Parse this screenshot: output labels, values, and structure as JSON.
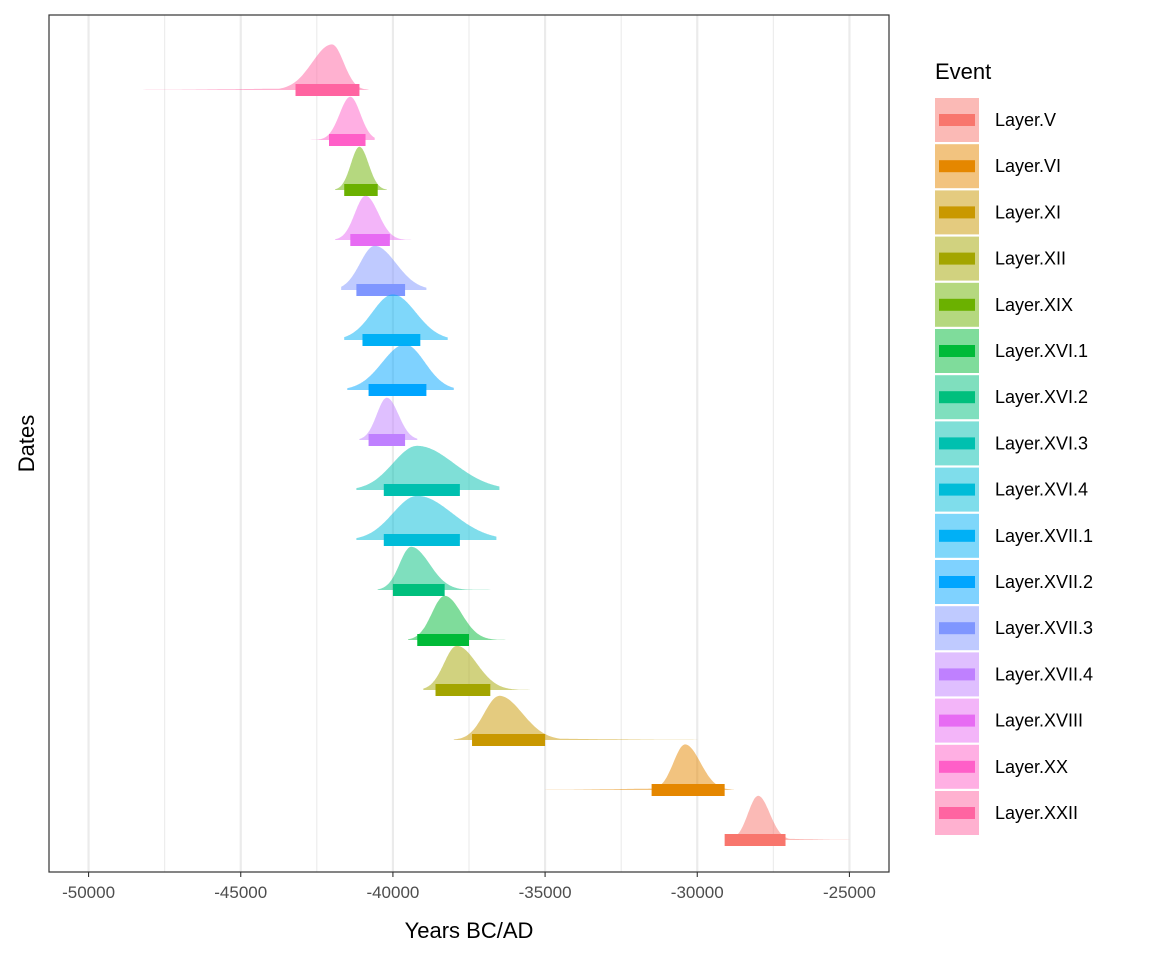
{
  "chart_data": {
    "type": "area",
    "xlabel": "Years BC/AD",
    "ylabel": "Dates",
    "xlim": [
      -51300,
      -23700
    ],
    "x_ticks": [
      -50000,
      -45000,
      -40000,
      -35000,
      -30000,
      -25000
    ],
    "x_tick_labels": [
      "-50000",
      "-45000",
      "-40000",
      "-35000",
      "-30000",
      "-25000"
    ],
    "grid": true,
    "legend_title": "Event",
    "legend_position": "right",
    "series": [
      {
        "name": "Layer.V",
        "color": "#F8766D",
        "peak": -28000,
        "sd_left": 330,
        "sd_right": 380,
        "height": 0.92,
        "tail_left": -28800,
        "tail_right": -25000,
        "interval": [
          -29100,
          -27100
        ]
      },
      {
        "name": "Layer.VI",
        "color": "#E58700",
        "peak": -30400,
        "sd_left": 380,
        "sd_right": 500,
        "height": 0.95,
        "tail_left": -35000,
        "tail_right": -28800,
        "interval": [
          -31500,
          -29100
        ]
      },
      {
        "name": "Layer.XI",
        "color": "#C99800",
        "peak": -36500,
        "sd_left": 500,
        "sd_right": 750,
        "height": 0.92,
        "tail_left": -38000,
        "tail_right": -30000,
        "interval": [
          -37400,
          -35000
        ]
      },
      {
        "name": "Layer.XII",
        "color": "#A3A500",
        "peak": -37900,
        "sd_left": 420,
        "sd_right": 650,
        "height": 0.92,
        "tail_left": -39000,
        "tail_right": -35500,
        "interval": [
          -38600,
          -36800
        ]
      },
      {
        "name": "Layer.XIX",
        "color": "#6BB100",
        "peak": -41100,
        "sd_left": 280,
        "sd_right": 300,
        "height": 0.9,
        "tail_left": -41900,
        "tail_right": -40200,
        "interval": [
          -41600,
          -40500
        ]
      },
      {
        "name": "Layer.XVI.1",
        "color": "#00BA38",
        "peak": -38300,
        "sd_left": 420,
        "sd_right": 550,
        "height": 0.92,
        "tail_left": -39500,
        "tail_right": -36300,
        "interval": [
          -39200,
          -37500
        ]
      },
      {
        "name": "Layer.XVI.2",
        "color": "#00BF7D",
        "peak": -39400,
        "sd_left": 380,
        "sd_right": 600,
        "height": 0.9,
        "tail_left": -40500,
        "tail_right": -36800,
        "interval": [
          -40000,
          -38300
        ]
      },
      {
        "name": "Layer.XVI.3",
        "color": "#00C0AF",
        "peak": -39200,
        "sd_left": 800,
        "sd_right": 1200,
        "height": 0.92,
        "tail_left": -41200,
        "tail_right": -36500,
        "interval": [
          -40300,
          -37800
        ]
      },
      {
        "name": "Layer.XVI.4",
        "color": "#00BCD8",
        "peak": -39200,
        "sd_left": 800,
        "sd_right": 1150,
        "height": 0.92,
        "tail_left": -41200,
        "tail_right": -36600,
        "interval": [
          -40300,
          -37800
        ]
      },
      {
        "name": "Layer.XVII.1",
        "color": "#00B0F6",
        "peak": -40000,
        "sd_left": 680,
        "sd_right": 750,
        "height": 0.95,
        "tail_left": -41600,
        "tail_right": -38200,
        "interval": [
          -41000,
          -39100
        ]
      },
      {
        "name": "Layer.XVII.2",
        "color": "#00A5FF",
        "peak": -39600,
        "sd_left": 750,
        "sd_right": 650,
        "height": 0.95,
        "tail_left": -41500,
        "tail_right": -38000,
        "interval": [
          -40800,
          -38900
        ]
      },
      {
        "name": "Layer.XVII.3",
        "color": "#7F96FF",
        "peak": -40600,
        "sd_left": 480,
        "sd_right": 700,
        "height": 0.92,
        "tail_left": -41700,
        "tail_right": -38900,
        "interval": [
          -41200,
          -39600
        ]
      },
      {
        "name": "Layer.XVII.4",
        "color": "#BF80FF",
        "peak": -40200,
        "sd_left": 330,
        "sd_right": 380,
        "height": 0.88,
        "tail_left": -41100,
        "tail_right": -39200,
        "interval": [
          -40800,
          -39600
        ]
      },
      {
        "name": "Layer.XVIII",
        "color": "#E76BF3",
        "peak": -40900,
        "sd_left": 350,
        "sd_right": 420,
        "height": 0.92,
        "tail_left": -41900,
        "tail_right": -39400,
        "interval": [
          -41400,
          -40100
        ]
      },
      {
        "name": "Layer.XX",
        "color": "#FF5FC8",
        "peak": -41400,
        "sd_left": 350,
        "sd_right": 330,
        "height": 0.9,
        "tail_left": -42700,
        "tail_right": -40600,
        "interval": [
          -42100,
          -40900
        ]
      },
      {
        "name": "Layer.XXII",
        "color": "#FF64A1",
        "peak": -42000,
        "sd_left": 650,
        "sd_right": 380,
        "height": 0.95,
        "tail_left": -48200,
        "tail_right": -40800,
        "interval": [
          -43200,
          -41100
        ]
      }
    ],
    "display_order_top_to_bottom": [
      "Layer.XXII",
      "Layer.XX",
      "Layer.XIX",
      "Layer.XVIII",
      "Layer.XVII.3",
      "Layer.XVII.1",
      "Layer.XVII.2",
      "Layer.XVII.4",
      "Layer.XVI.3",
      "Layer.XVI.4",
      "Layer.XVI.2",
      "Layer.XVI.1",
      "Layer.XII",
      "Layer.XI",
      "Layer.VI",
      "Layer.V"
    ]
  }
}
